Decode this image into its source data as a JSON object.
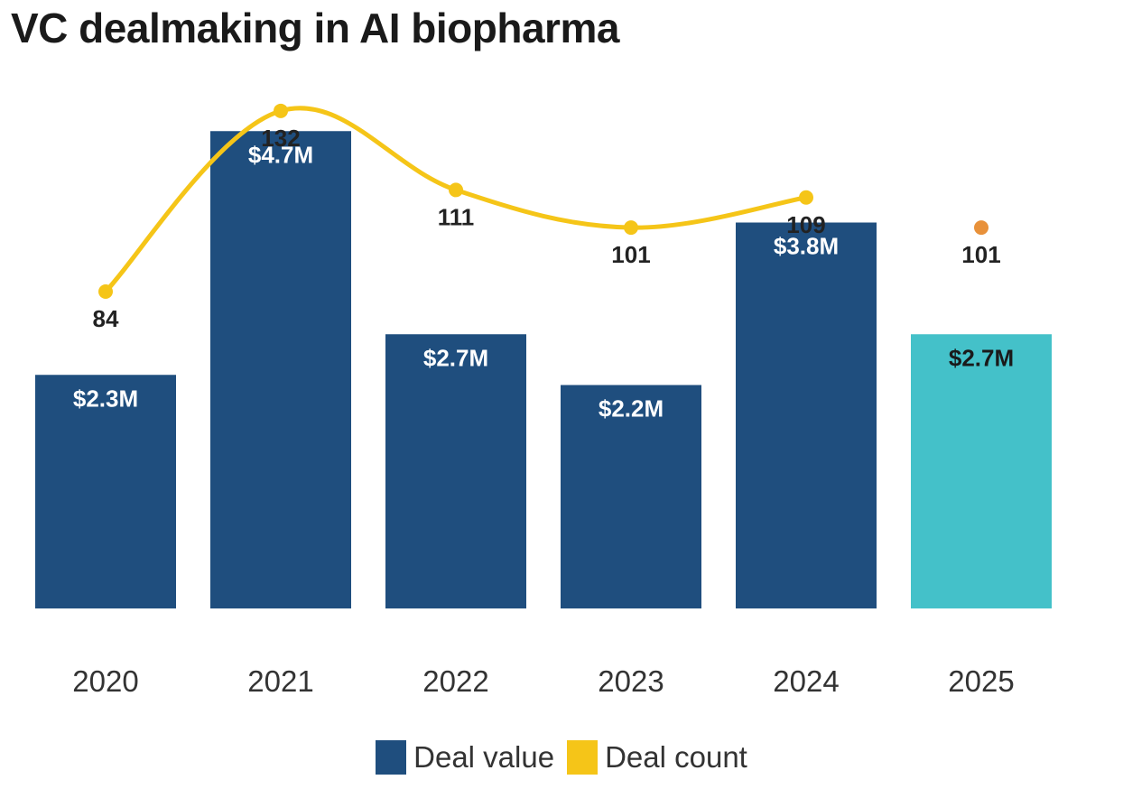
{
  "chart_data": {
    "type": "bar",
    "title": "VC dealmaking in AI biopharma",
    "xlabel": "",
    "ylabel": "",
    "categories": [
      "2020",
      "2021",
      "2022",
      "2023",
      "2024",
      "2025"
    ],
    "series": [
      {
        "name": "Deal value",
        "type": "bar",
        "values": [
          2.3,
          4.7,
          2.7,
          2.2,
          3.8,
          2.7
        ],
        "labels": [
          "$2.3M",
          "$4.7M",
          "$2.7M",
          "$2.2M",
          "$3.8M",
          "$2.7M"
        ],
        "colors": [
          "#1f4e7e",
          "#1f4e7e",
          "#1f4e7e",
          "#1f4e7e",
          "#1f4e7e",
          "#44c1c9"
        ],
        "label_colors": [
          "#ffffff",
          "#ffffff",
          "#ffffff",
          "#ffffff",
          "#ffffff",
          "#1a1a1a"
        ],
        "ylim": [
          0,
          5
        ]
      },
      {
        "name": "Deal count",
        "type": "line",
        "values": [
          84,
          132,
          111,
          101,
          109,
          101
        ],
        "labels": [
          "84",
          "132",
          "111",
          "101",
          "109",
          "101"
        ],
        "color": "#f5c518",
        "highlight_color": "#e8913a",
        "line_categories": 5
      }
    ],
    "legend": {
      "position": "bottom-center",
      "items": [
        {
          "label": "Deal value",
          "color": "#1f4e7e"
        },
        {
          "label": "Deal count",
          "color": "#f5c518"
        }
      ]
    }
  }
}
